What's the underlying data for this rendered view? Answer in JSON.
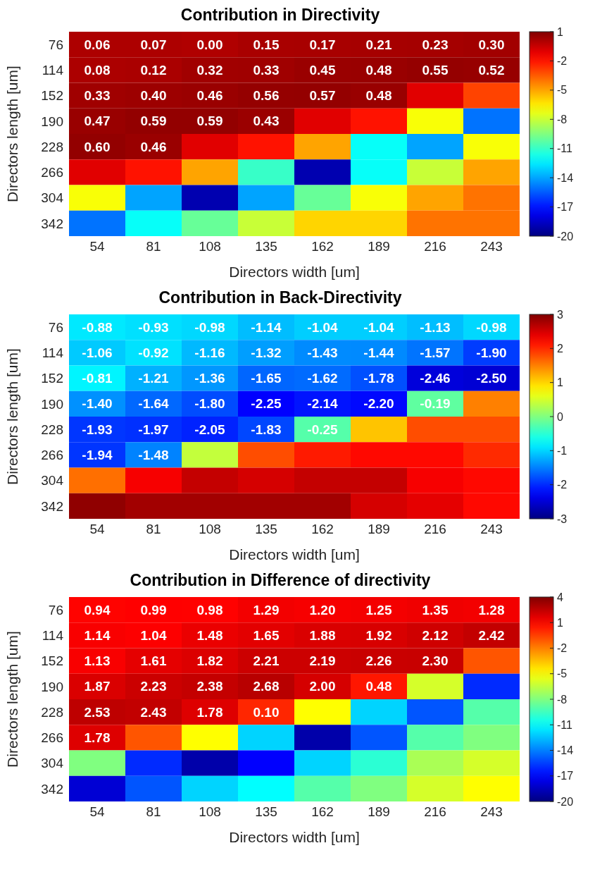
{
  "chart_data": [
    {
      "type": "heatmap",
      "title": "Contribution in Directivity",
      "xlabel": "Directors width [um]",
      "ylabel": "Directors length [um]",
      "categories": [
        "54",
        "81",
        "108",
        "135",
        "162",
        "189",
        "216",
        "243"
      ],
      "y_categories": [
        "76",
        "114",
        "152",
        "190",
        "228",
        "266",
        "304",
        "342"
      ],
      "cells": [
        [
          0.06,
          0.07,
          0.0,
          0.15,
          0.17,
          0.21,
          0.23,
          0.3
        ],
        [
          0.08,
          0.12,
          0.32,
          0.33,
          0.45,
          0.48,
          0.55,
          0.52
        ],
        [
          0.33,
          0.4,
          0.46,
          0.56,
          0.57,
          0.48,
          -1,
          -3
        ],
        [
          0.47,
          0.59,
          0.59,
          0.43,
          -1,
          -2,
          -7,
          -15
        ],
        [
          0.6,
          0.46,
          -1,
          -2,
          -5,
          -12,
          -14,
          -7
        ],
        [
          -1,
          -2,
          -5,
          -11,
          -19,
          -12,
          -8,
          -5
        ],
        [
          -7,
          -14,
          -19,
          -14,
          -10,
          -7,
          -5,
          -4
        ],
        [
          -15,
          -12,
          -10,
          -8,
          -6,
          -6,
          -4,
          -4
        ]
      ],
      "cell_labels": [
        [
          "0.06",
          "0.07",
          "0.00",
          "0.15",
          "0.17",
          "0.21",
          "0.23",
          "0.30"
        ],
        [
          "0.08",
          "0.12",
          "0.32",
          "0.33",
          "0.45",
          "0.48",
          "0.55",
          "0.52"
        ],
        [
          "0.33",
          "0.40",
          "0.46",
          "0.56",
          "0.57",
          "0.48",
          null,
          null
        ],
        [
          "0.47",
          "0.59",
          "0.59",
          "0.43",
          null,
          null,
          null,
          null
        ],
        [
          "0.60",
          "0.46",
          null,
          null,
          null,
          null,
          null,
          null
        ],
        [
          null,
          null,
          null,
          null,
          null,
          null,
          null,
          null
        ],
        [
          null,
          null,
          null,
          null,
          null,
          null,
          null,
          null
        ],
        [
          null,
          null,
          null,
          null,
          null,
          null,
          null,
          null
        ]
      ],
      "clim": [
        -20,
        1
      ],
      "cticks": [
        1,
        -2,
        -5,
        -8,
        -11,
        -14,
        -17,
        -20
      ]
    },
    {
      "type": "heatmap",
      "title": "Contribution in Back-Directivity",
      "xlabel": "Directors width [um]",
      "ylabel": "Directors length [um]",
      "categories": [
        "54",
        "81",
        "108",
        "135",
        "162",
        "189",
        "216",
        "243"
      ],
      "y_categories": [
        "76",
        "114",
        "152",
        "190",
        "228",
        "266",
        "304",
        "342"
      ],
      "cells": [
        [
          -0.88,
          -0.93,
          -0.98,
          -1.14,
          -1.04,
          -1.04,
          -1.13,
          -0.98
        ],
        [
          -1.06,
          -0.92,
          -1.16,
          -1.32,
          -1.43,
          -1.44,
          -1.57,
          -1.9
        ],
        [
          -0.81,
          -1.21,
          -1.36,
          -1.65,
          -1.62,
          -1.78,
          -2.46,
          -2.5
        ],
        [
          -1.4,
          -1.64,
          -1.8,
          -2.25,
          -2.14,
          -2.2,
          -0.19,
          1.5
        ],
        [
          -1.93,
          -1.97,
          -2.05,
          -1.83,
          -0.25,
          1.1,
          1.8,
          1.8
        ],
        [
          -1.94,
          -1.48,
          0.4,
          1.8,
          2.1,
          2.2,
          2.2,
          2.0
        ],
        [
          1.6,
          2.3,
          2.6,
          2.5,
          2.6,
          2.6,
          2.3,
          2.2
        ],
        [
          2.9,
          2.8,
          2.8,
          2.8,
          2.8,
          2.5,
          2.4,
          2.2
        ]
      ],
      "cell_labels": [
        [
          "-0.88",
          "-0.93",
          "-0.98",
          "-1.14",
          "-1.04",
          "-1.04",
          "-1.13",
          "-0.98"
        ],
        [
          "-1.06",
          "-0.92",
          "-1.16",
          "-1.32",
          "-1.43",
          "-1.44",
          "-1.57",
          "-1.90"
        ],
        [
          "-0.81",
          "-1.21",
          "-1.36",
          "-1.65",
          "-1.62",
          "-1.78",
          "-2.46",
          "-2.50"
        ],
        [
          "-1.40",
          "-1.64",
          "-1.80",
          "-2.25",
          "-2.14",
          "-2.20",
          "-0.19",
          null
        ],
        [
          "-1.93",
          "-1.97",
          "-2.05",
          "-1.83",
          "-0.25",
          null,
          null,
          null
        ],
        [
          "-1.94",
          "-1.48",
          null,
          null,
          null,
          null,
          null,
          null
        ],
        [
          null,
          null,
          null,
          null,
          null,
          null,
          null,
          null
        ],
        [
          null,
          null,
          null,
          null,
          null,
          null,
          null,
          null
        ]
      ],
      "clim": [
        -3,
        3
      ],
      "cticks": [
        3,
        2,
        1,
        0,
        -1,
        -2,
        -3
      ]
    },
    {
      "type": "heatmap",
      "title": "Contribution in Difference of directivity",
      "xlabel": "Directors width [um]",
      "ylabel": "Directors length [um]",
      "categories": [
        "54",
        "81",
        "108",
        "135",
        "162",
        "189",
        "216",
        "243"
      ],
      "y_categories": [
        "76",
        "114",
        "152",
        "190",
        "228",
        "266",
        "304",
        "342"
      ],
      "cells": [
        [
          0.94,
          0.99,
          0.98,
          1.29,
          1.2,
          1.25,
          1.35,
          1.28
        ],
        [
          1.14,
          1.04,
          1.48,
          1.65,
          1.88,
          1.92,
          2.12,
          2.42
        ],
        [
          1.13,
          1.61,
          1.82,
          2.21,
          2.19,
          2.26,
          2.3,
          -1
        ],
        [
          1.87,
          2.23,
          2.38,
          2.68,
          2.0,
          0.48,
          -6,
          -16
        ],
        [
          2.53,
          2.43,
          1.78,
          0.1,
          -5,
          -12,
          -15,
          -9
        ],
        [
          1.78,
          -1,
          -5,
          -12,
          -19,
          -15,
          -9,
          -8
        ],
        [
          -8,
          -16,
          -19,
          -17,
          -12,
          -10,
          -7,
          -6
        ],
        [
          -18,
          -15,
          -12,
          -11,
          -9,
          -8,
          -6,
          -5
        ]
      ],
      "cell_labels": [
        [
          "0.94",
          "0.99",
          "0.98",
          "1.29",
          "1.20",
          "1.25",
          "1.35",
          "1.28"
        ],
        [
          "1.14",
          "1.04",
          "1.48",
          "1.65",
          "1.88",
          "1.92",
          "2.12",
          "2.42"
        ],
        [
          "1.13",
          "1.61",
          "1.82",
          "2.21",
          "2.19",
          "2.26",
          "2.30",
          null
        ],
        [
          "1.87",
          "2.23",
          "2.38",
          "2.68",
          "2.00",
          "0.48",
          null,
          null
        ],
        [
          "2.53",
          "2.43",
          "1.78",
          "0.10",
          null,
          null,
          null,
          null
        ],
        [
          "1.78",
          null,
          null,
          null,
          null,
          null,
          null,
          null
        ],
        [
          null,
          null,
          null,
          null,
          null,
          null,
          null,
          null
        ],
        [
          null,
          null,
          null,
          null,
          null,
          null,
          null,
          null
        ]
      ],
      "clim": [
        -20,
        4
      ],
      "cticks": [
        4,
        1,
        -2,
        -5,
        -8,
        -11,
        -14,
        -17,
        -20
      ]
    }
  ]
}
